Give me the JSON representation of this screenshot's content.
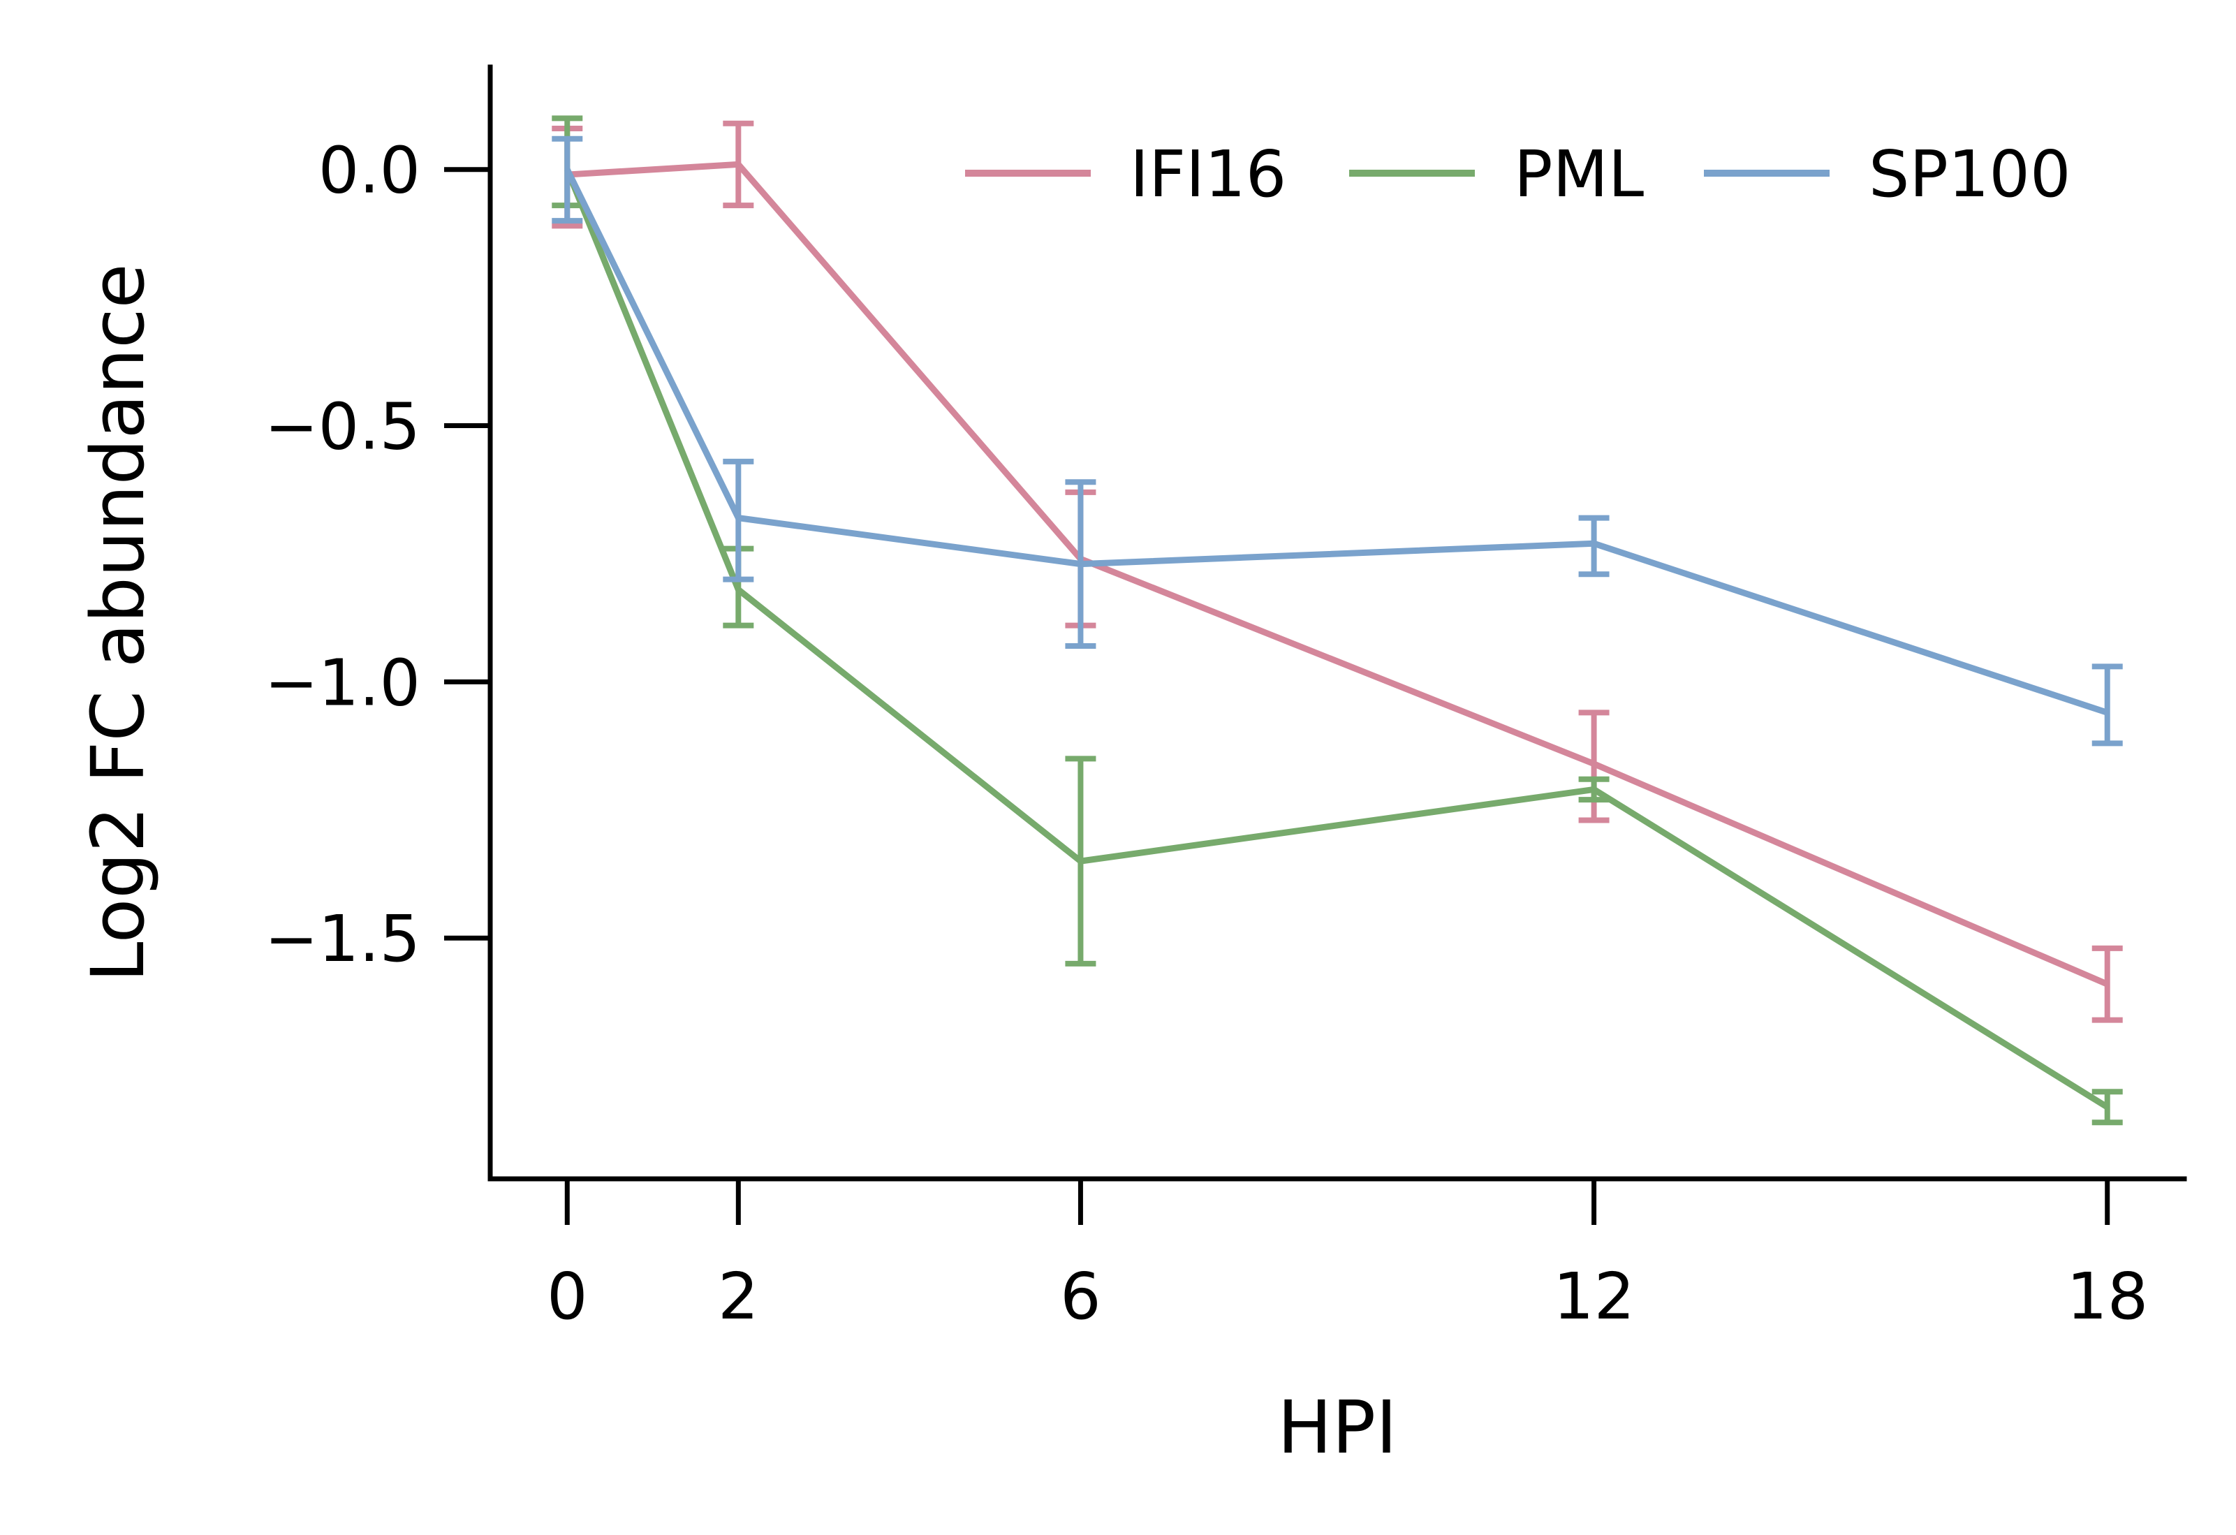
{
  "chart_data": {
    "type": "line",
    "xlabel": "HPI",
    "ylabel": "Log2 FC abundance",
    "x": [
      0,
      2,
      6,
      12,
      18
    ],
    "xlim": [
      -0.9,
      18.9
    ],
    "ylim": [
      -1.97,
      0.2
    ],
    "xticks": [
      0,
      2,
      6,
      12,
      18
    ],
    "xtick_labels": [
      "0",
      "2",
      "6",
      "12",
      "18"
    ],
    "yticks": [
      0.0,
      -0.5,
      -1.0,
      -1.5
    ],
    "ytick_labels": [
      "0.0",
      "−0.5",
      "−1.0",
      "−1.5"
    ],
    "grid": false,
    "legend": {
      "placement": "top-right",
      "ncol": 3
    },
    "series": [
      {
        "name": "IFI16",
        "color": "#d4869a",
        "values": [
          -0.01,
          0.01,
          -0.76,
          -1.16,
          -1.59
        ],
        "err_low": [
          -0.11,
          -0.07,
          -0.89,
          -1.27,
          -1.66
        ],
        "err_high": [
          0.08,
          0.09,
          -0.63,
          -1.06,
          -1.52
        ]
      },
      {
        "name": "PML",
        "color": "#77aa6c",
        "values": [
          0.0,
          -0.82,
          -1.35,
          -1.21,
          -1.83
        ],
        "err_low": [
          -0.07,
          -0.89,
          -1.55,
          -1.23,
          -1.86
        ],
        "err_high": [
          0.1,
          -0.74,
          -1.15,
          -1.19,
          -1.8
        ]
      },
      {
        "name": "SP100",
        "color": "#7aa2cc",
        "values": [
          0.0,
          -0.68,
          -0.77,
          -0.73,
          -1.06
        ],
        "err_low": [
          -0.1,
          -0.8,
          -0.93,
          -0.79,
          -1.12
        ],
        "err_high": [
          0.06,
          -0.57,
          -0.61,
          -0.68,
          -0.97
        ]
      }
    ]
  }
}
